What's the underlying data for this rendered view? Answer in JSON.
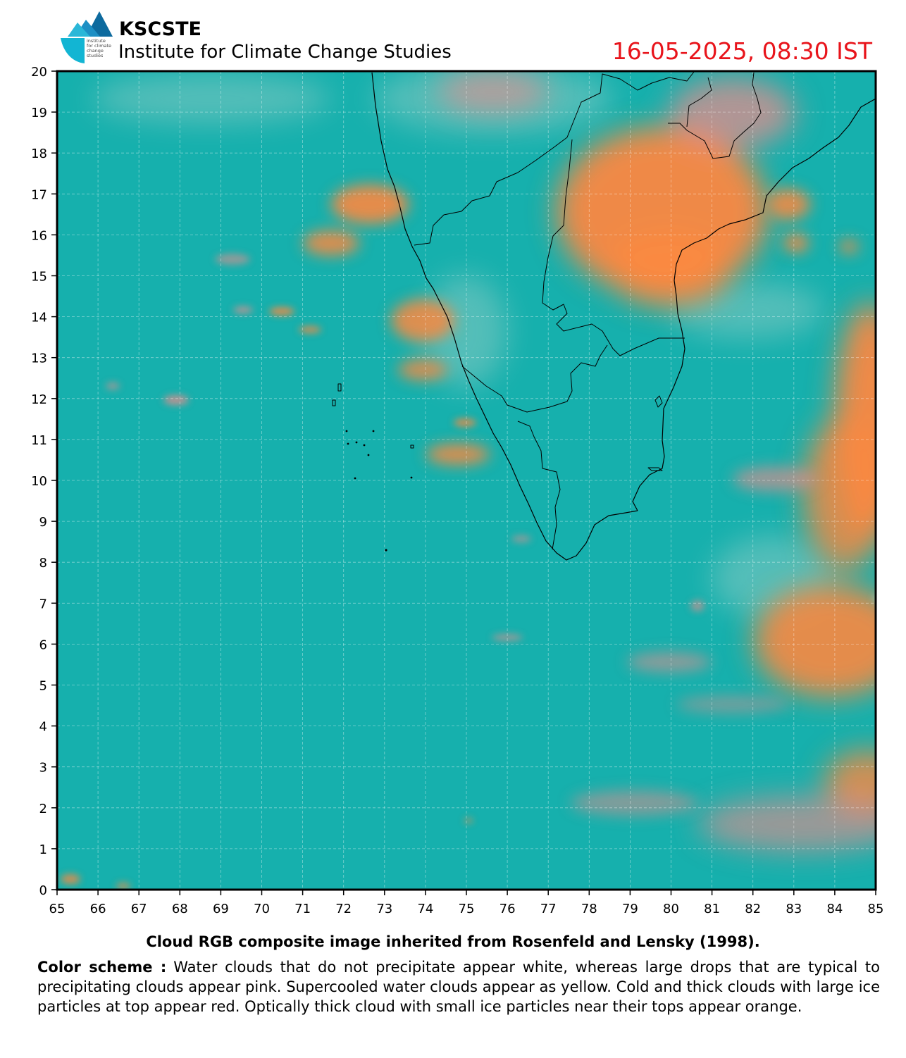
{
  "header": {
    "org_name": "KSCSTE",
    "org_subtitle": "Institute for Climate Change Studies",
    "logo_text": [
      "institute",
      "for climate",
      "change",
      "studies"
    ],
    "timestamp": "16-05-2025, 08:30 IST",
    "timestamp_color": "#e8141b"
  },
  "map": {
    "x_ticks": [
      "65",
      "66",
      "67",
      "68",
      "69",
      "70",
      "71",
      "72",
      "73",
      "74",
      "75",
      "76",
      "77",
      "78",
      "79",
      "80",
      "81",
      "82",
      "83",
      "84",
      "85"
    ],
    "y_ticks": [
      "0",
      "1",
      "2",
      "3",
      "4",
      "5",
      "6",
      "7",
      "8",
      "9",
      "10",
      "11",
      "12",
      "13",
      "14",
      "15",
      "16",
      "17",
      "18",
      "19",
      "20"
    ],
    "lon_range": [
      65,
      85
    ],
    "lat_range": [
      0,
      20
    ],
    "grid": "dashed",
    "colors": {
      "background": "#16b0ad",
      "cloud_orange": "#fb8840",
      "cloud_pink": "#f28a8a",
      "cloud_whitish": "#9fcfc7",
      "coastline": "#000000"
    }
  },
  "caption": "Cloud RGB composite image inherited from Rosenfeld and Lensky (1998).",
  "color_scheme": {
    "label": "Color scheme :",
    "text": "Water clouds that do not precipitate appear white, whereas large drops that are typical to precipitating clouds appear pink. Supercooled water clouds appear as yellow. Cold and thick clouds with large ice particles at top appear red. Optically thick cloud with small ice particles near their tops appear orange."
  }
}
